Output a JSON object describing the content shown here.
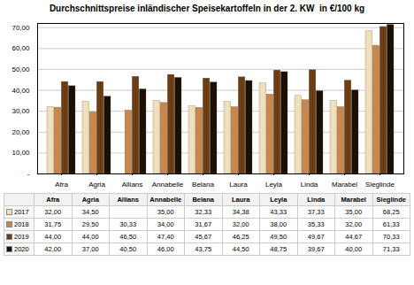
{
  "chart_data": {
    "type": "bar",
    "title": "Durchschnittspreise inländischer Speisekartoffeln in der 2. KW  in €/100 kg",
    "categories": [
      "Afra",
      "Agria",
      "Allians",
      "Annabelle",
      "Belana",
      "Laura",
      "Leyla",
      "Linda",
      "Marabel",
      "Sieglinde"
    ],
    "series": [
      {
        "name": "2017",
        "color": "#f0e0b8",
        "values": [
          32.0,
          34.5,
          null,
          35.0,
          32.33,
          34.38,
          43.33,
          37.33,
          35.0,
          68.25
        ],
        "value_labels": [
          "32,00",
          "34,50",
          null,
          "35,00",
          "32,33",
          "34,38",
          "43,33",
          "37,33",
          "35,00",
          "68,25"
        ]
      },
      {
        "name": "2018",
        "color": "#c8864a",
        "values": [
          31.75,
          29.5,
          30.33,
          34.0,
          31.67,
          32.0,
          38.0,
          35.33,
          32.0,
          61.33
        ],
        "value_labels": [
          "31,75",
          "29,50",
          "30,33",
          "34,00",
          "31,67",
          "32,00",
          "38,00",
          "35,33",
          "32,00",
          "61,33"
        ]
      },
      {
        "name": "2019",
        "color": "#6b3d10",
        "values": [
          44.0,
          44.0,
          46.5,
          47.4,
          45.67,
          46.25,
          49.5,
          49.67,
          44.67,
          70.33
        ],
        "value_labels": [
          "44,00",
          "44,00",
          "46,50",
          "47,40",
          "45,67",
          "46,25",
          "49,50",
          "49,67",
          "44,67",
          "70,33"
        ]
      },
      {
        "name": "2020",
        "color": "#1c0f05",
        "values": [
          42.0,
          37.0,
          40.5,
          46.0,
          43.75,
          44.5,
          48.75,
          39.67,
          40.0,
          71.33
        ],
        "value_labels": [
          "42,00",
          "37,00",
          "40,50",
          "46,00",
          "43,75",
          "44,50",
          "48,75",
          "39,67",
          "40,00",
          "71,33"
        ]
      }
    ],
    "ylim": [
      0,
      72
    ],
    "yticks": [
      {
        "value": 0,
        "label": "-"
      },
      {
        "value": 10,
        "label": "10,00"
      },
      {
        "value": 20,
        "label": "20,00"
      },
      {
        "value": 30,
        "label": "30,00"
      },
      {
        "value": 40,
        "label": "40,00"
      },
      {
        "value": 50,
        "label": "50,00"
      },
      {
        "value": 60,
        "label": "60,00"
      },
      {
        "value": 70,
        "label": "70,00"
      }
    ],
    "grid": true
  }
}
